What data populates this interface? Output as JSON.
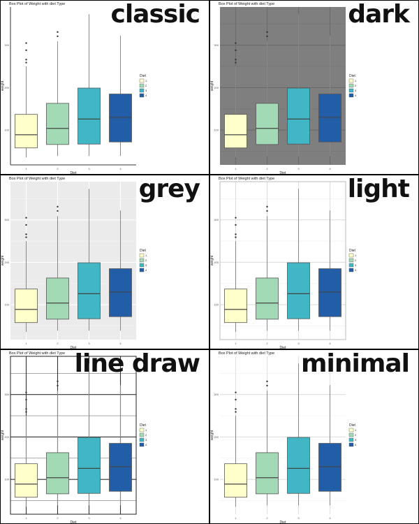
{
  "chart_data": [
    {
      "theme_label": "classic",
      "theme": "classic"
    },
    {
      "theme_label": "dark",
      "theme": "dark"
    },
    {
      "theme_label": "grey",
      "theme": "grey"
    },
    {
      "theme_label": "light",
      "theme": "light"
    },
    {
      "theme_label": "line draw",
      "theme": "linedraw"
    },
    {
      "theme_label": "minimal",
      "theme": "minimal"
    }
  ],
  "shared": {
    "type": "box",
    "title": "Box Plot of Weight with diet Type",
    "xlabel": "Diet",
    "ylabel": "weight",
    "legend_title": "Diet",
    "legend_position": "right",
    "categories": [
      "1",
      "2",
      "3",
      "4"
    ],
    "y_ticks": [
      100,
      200,
      300
    ],
    "ylim": [
      18,
      390
    ],
    "colors": [
      "#ffffcc",
      "#a1dab4",
      "#41b6c4",
      "#225ea8"
    ],
    "boxes": [
      {
        "min": 36,
        "q1": 58,
        "median": 89,
        "q3": 137,
        "max": 250,
        "outliers": [
          259,
          266,
          288,
          305
        ]
      },
      {
        "min": 39,
        "q1": 66,
        "median": 104,
        "q3": 163,
        "max": 309,
        "outliers": [
          321,
          331
        ]
      },
      {
        "min": 39,
        "q1": 67,
        "median": 126,
        "q3": 199,
        "max": 373,
        "outliers": []
      },
      {
        "min": 39,
        "q1": 72,
        "median": 130,
        "q3": 185,
        "max": 322,
        "outliers": []
      }
    ]
  }
}
